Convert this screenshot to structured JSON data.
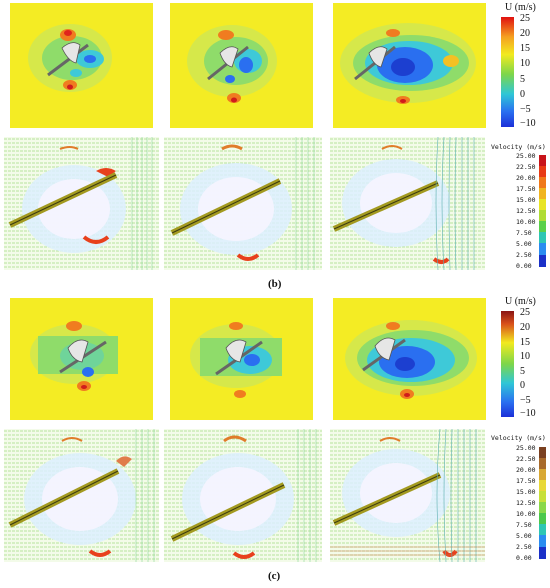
{
  "colorbar_u": {
    "title": "U (m/s)",
    "ticks": [
      "25",
      "20",
      "15",
      "10",
      "5",
      "0",
      "−5",
      "−10"
    ]
  },
  "colorbar_velocity": {
    "title": "Velocity (m/s)",
    "ticks": [
      "25.00",
      "22.50",
      "20.00",
      "17.50",
      "15.00",
      "12.50",
      "10.00",
      "7.50",
      "5.00",
      "2.50",
      "0.00"
    ]
  },
  "captions": {
    "b": "(b)",
    "c": "(c)"
  },
  "colors": {
    "field_background": "#f2ea1f",
    "wake_low": "#1c4fe8",
    "wake_mid": "#2fc7d6",
    "high": "#e8291c",
    "vector_field": "#9fdc7a",
    "blade": "#a0a020"
  }
}
